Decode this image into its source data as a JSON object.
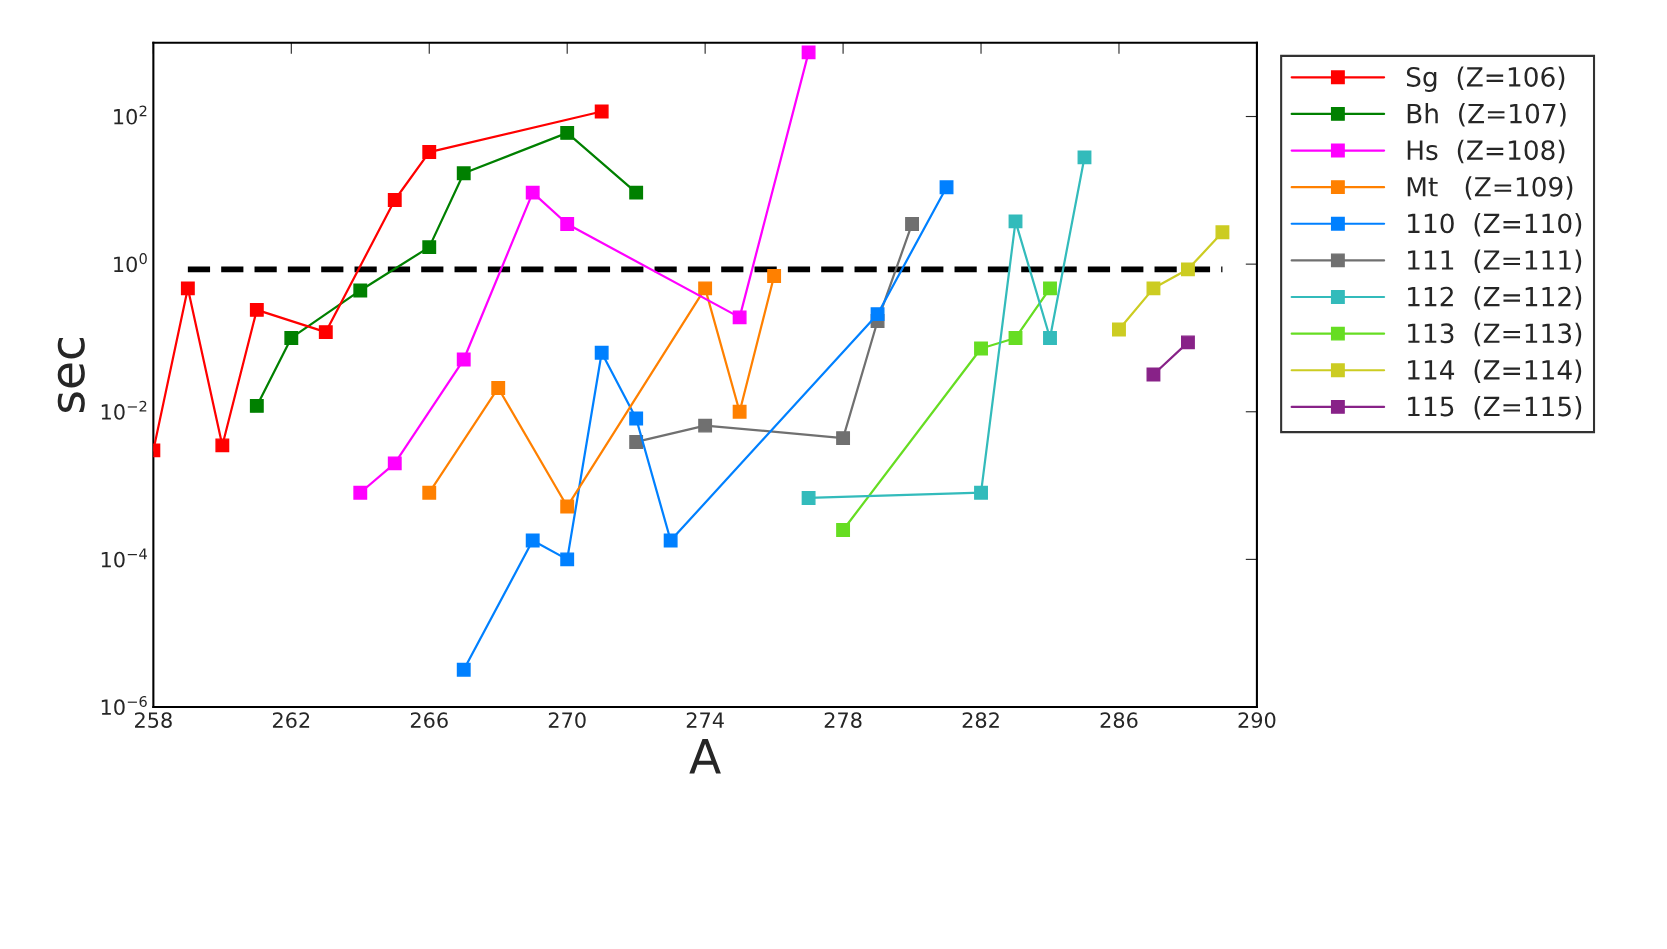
{
  "chart_data": {
    "type": "line",
    "xlabel": "A",
    "ylabel": "sec",
    "log": "y",
    "marker": "square",
    "line_style": "solid",
    "legend": "right",
    "grid": false,
    "xlim": [
      258,
      290
    ],
    "xticks": [
      258,
      262,
      266,
      270,
      274,
      278,
      282,
      286,
      290
    ],
    "ylim": [
      1e-06,
      1000
    ],
    "yticks": [
      {
        "value": 1e-06,
        "label": "10$^{−6}$"
      },
      {
        "value": 0.0001,
        "label": "10$^{−4}$"
      },
      {
        "value": 0.01,
        "label": "10$^{−2}$"
      },
      {
        "value": 1,
        "label": "10$^{0}$"
      },
      {
        "value": 100,
        "label": "10$^{2}$"
      }
    ],
    "series": [
      {
        "name": "Sg  (Z=106)",
        "color": "#ff0000",
        "x": [
          258,
          259,
          260,
          261,
          263,
          265,
          266,
          271
        ],
        "values": [
          0.003,
          0.47,
          0.0035,
          0.24,
          0.12,
          7.4,
          33,
          117
        ]
      },
      {
        "name": "Bh  (Z=107)",
        "color": "#008000",
        "x": [
          261,
          262,
          264,
          266,
          267,
          270,
          272
        ],
        "values": [
          0.012,
          0.1,
          0.44,
          1.7,
          17,
          60,
          9.3
        ]
      },
      {
        "name": "Hs  (Z=108)",
        "color": "#ff00ff",
        "x": [
          264,
          265,
          267,
          269,
          270,
          275,
          277
        ],
        "values": [
          0.0008,
          0.002,
          0.051,
          9.3,
          3.5,
          0.19,
          740
        ]
      },
      {
        "name": "Mt   (Z=109)",
        "color": "#ff8000",
        "x": [
          266,
          268,
          270,
          274,
          275,
          276
        ],
        "values": [
          0.0008,
          0.021,
          0.00052,
          0.47,
          0.01,
          0.69
        ]
      },
      {
        "name": "110  (Z=110)",
        "color": "#0080ff",
        "x": [
          267,
          269,
          270,
          271,
          272,
          273,
          279,
          281
        ],
        "values": [
          3.2e-06,
          0.00018,
          0.0001,
          0.063,
          0.0081,
          0.00018,
          0.21,
          11
        ]
      },
      {
        "name": "111  (Z=111)",
        "color": "#707070",
        "x": [
          272,
          274,
          278,
          279,
          280
        ],
        "values": [
          0.0039,
          0.0065,
          0.0044,
          0.17,
          3.5
        ]
      },
      {
        "name": "112  (Z=112)",
        "color": "#33bbbb",
        "x": [
          277,
          282,
          283,
          284,
          285
        ],
        "values": [
          0.00068,
          0.0008,
          3.8,
          0.1,
          28
        ]
      },
      {
        "name": "113  (Z=113)",
        "color": "#66dd22",
        "x": [
          278,
          282,
          283,
          284
        ],
        "values": [
          0.00025,
          0.072,
          0.1,
          0.47
        ]
      },
      {
        "name": "114  (Z=114)",
        "color": "#cccc22",
        "x": [
          286,
          287,
          288,
          289
        ],
        "values": [
          0.13,
          0.47,
          0.85,
          2.7
        ]
      },
      {
        "name": "115  (Z=115)",
        "color": "#882288",
        "x": [
          287,
          288
        ],
        "values": [
          0.032,
          0.087
        ]
      },
      {
        "type": "line",
        "color": "#000000",
        "line_style": "dashed",
        "marker": "none",
        "x": [
          259,
          289
        ],
        "values": [
          0.85,
          0.85
        ]
      }
    ]
  }
}
